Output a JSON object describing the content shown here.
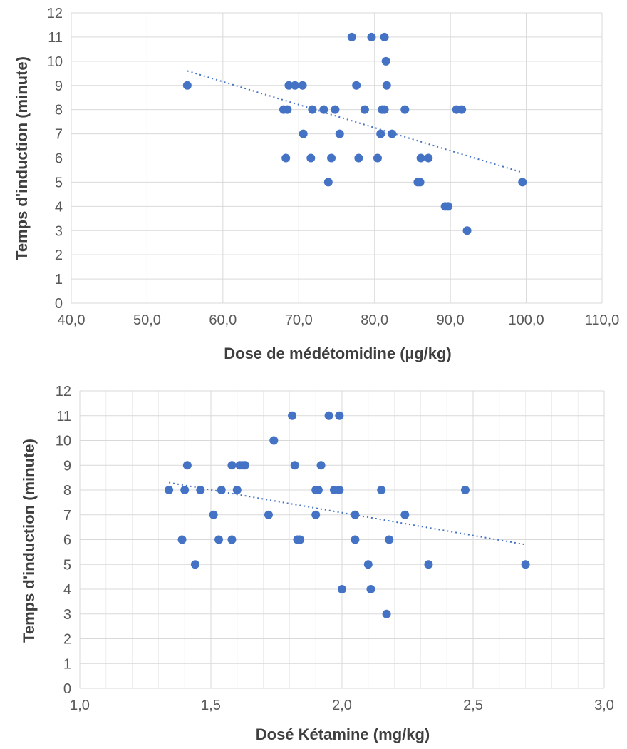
{
  "chart_data": [
    {
      "type": "scatter",
      "xlabel": "Dose de médétomidine (µg/kg)",
      "ylabel": "Temps d'induction (minute)",
      "xlim": [
        40,
        110
      ],
      "ylim": [
        0,
        12
      ],
      "xticks": [
        40,
        50,
        60,
        70,
        80,
        90,
        100,
        110
      ],
      "xtick_labels": [
        "40,0",
        "50,0",
        "60,0",
        "70,0",
        "80,0",
        "90,0",
        "100,0",
        "110,0"
      ],
      "yticks": [
        0,
        1,
        2,
        3,
        4,
        5,
        6,
        7,
        8,
        9,
        10,
        11,
        12
      ],
      "ytick_labels": [
        "0",
        "1",
        "2",
        "3",
        "4",
        "5",
        "6",
        "7",
        "8",
        "9",
        "10",
        "11",
        "12"
      ],
      "minor_grid": false,
      "color": "#4472c4",
      "trendline": {
        "style": "dotted-linear",
        "from": [
          55.3,
          9.6
        ],
        "to": [
          99.5,
          5.4
        ]
      },
      "points": [
        [
          55.3,
          9
        ],
        [
          68.0,
          8
        ],
        [
          68.5,
          8
        ],
        [
          68.3,
          6
        ],
        [
          68.7,
          9
        ],
        [
          69.5,
          9
        ],
        [
          70.5,
          9
        ],
        [
          70.6,
          7
        ],
        [
          71.6,
          6
        ],
        [
          71.8,
          8
        ],
        [
          73.3,
          8
        ],
        [
          73.9,
          5
        ],
        [
          74.3,
          6
        ],
        [
          74.8,
          8
        ],
        [
          75.4,
          7
        ],
        [
          77.0,
          11
        ],
        [
          77.6,
          9
        ],
        [
          77.9,
          6
        ],
        [
          78.7,
          8
        ],
        [
          79.6,
          11
        ],
        [
          80.4,
          6
        ],
        [
          80.8,
          7
        ],
        [
          81.0,
          8
        ],
        [
          81.3,
          8
        ],
        [
          81.3,
          11
        ],
        [
          81.5,
          10
        ],
        [
          81.6,
          9
        ],
        [
          82.3,
          7
        ],
        [
          84.0,
          8
        ],
        [
          85.7,
          5
        ],
        [
          86.0,
          5
        ],
        [
          86.1,
          6
        ],
        [
          87.1,
          6
        ],
        [
          89.3,
          4
        ],
        [
          89.7,
          4
        ],
        [
          90.8,
          8
        ],
        [
          91.5,
          8
        ],
        [
          92.2,
          3
        ],
        [
          99.5,
          5
        ]
      ]
    },
    {
      "type": "scatter",
      "xlabel": "Dosé Kétamine (mg/kg)",
      "ylabel": "Temps d'induction (minute)",
      "xlim": [
        1.0,
        3.0
      ],
      "ylim": [
        0,
        12
      ],
      "xticks": [
        1.0,
        1.5,
        2.0,
        2.5,
        3.0
      ],
      "xtick_labels": [
        "1,0",
        "1,5",
        "2,0",
        "2,5",
        "3,0"
      ],
      "yticks": [
        0,
        1,
        2,
        3,
        4,
        5,
        6,
        7,
        8,
        9,
        10,
        11,
        12
      ],
      "ytick_labels": [
        "0",
        "1",
        "2",
        "3",
        "4",
        "5",
        "6",
        "7",
        "8",
        "9",
        "10",
        "11",
        "12"
      ],
      "minor_grid": true,
      "color": "#4472c4",
      "trendline": {
        "style": "dotted-linear",
        "from": [
          1.34,
          8.3
        ],
        "to": [
          2.7,
          5.8
        ]
      },
      "points": [
        [
          1.34,
          8
        ],
        [
          1.39,
          6
        ],
        [
          1.4,
          8
        ],
        [
          1.41,
          9
        ],
        [
          1.44,
          5
        ],
        [
          1.46,
          8
        ],
        [
          1.51,
          7
        ],
        [
          1.53,
          6
        ],
        [
          1.54,
          8
        ],
        [
          1.58,
          9
        ],
        [
          1.58,
          6
        ],
        [
          1.6,
          8
        ],
        [
          1.61,
          9
        ],
        [
          1.62,
          9
        ],
        [
          1.63,
          9
        ],
        [
          1.72,
          7
        ],
        [
          1.74,
          10
        ],
        [
          1.81,
          11
        ],
        [
          1.82,
          9
        ],
        [
          1.83,
          6
        ],
        [
          1.84,
          6
        ],
        [
          1.9,
          7
        ],
        [
          1.9,
          8
        ],
        [
          1.91,
          8
        ],
        [
          1.92,
          9
        ],
        [
          1.95,
          11
        ],
        [
          1.97,
          8
        ],
        [
          1.99,
          11
        ],
        [
          1.99,
          8
        ],
        [
          2.0,
          4
        ],
        [
          2.05,
          6
        ],
        [
          2.05,
          7
        ],
        [
          2.1,
          5
        ],
        [
          2.11,
          4
        ],
        [
          2.15,
          8
        ],
        [
          2.17,
          3
        ],
        [
          2.18,
          6
        ],
        [
          2.24,
          7
        ],
        [
          2.33,
          5
        ],
        [
          2.47,
          8
        ],
        [
          2.7,
          5
        ]
      ]
    }
  ]
}
